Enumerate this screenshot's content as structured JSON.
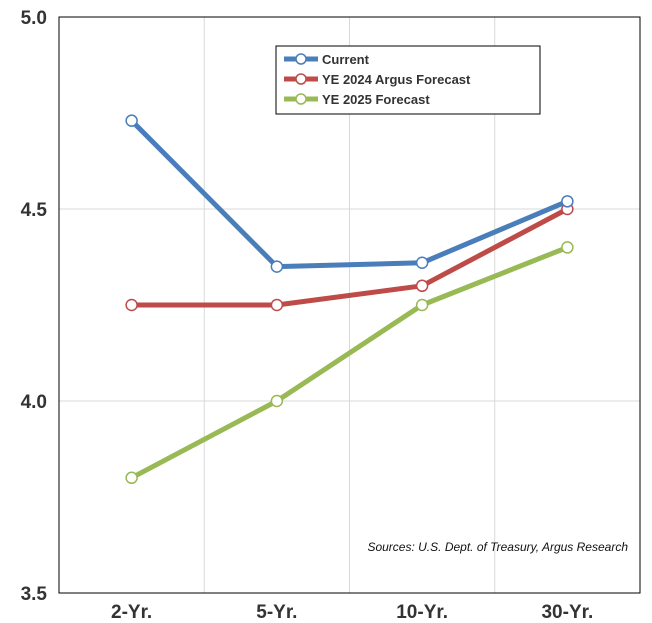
{
  "chart_data": {
    "type": "line",
    "categories": [
      "2-Yr.",
      "5-Yr.",
      "10-Yr.",
      "30-Yr."
    ],
    "series": [
      {
        "name": "Current",
        "values": [
          4.73,
          4.35,
          4.36,
          4.52
        ],
        "color": "#4a7ebb"
      },
      {
        "name": "YE 2024 Argus Forecast",
        "values": [
          4.25,
          4.25,
          4.3,
          4.5
        ],
        "color": "#be4b48"
      },
      {
        "name": "YE 2025 Forecast",
        "values": [
          3.8,
          4.0,
          4.25,
          4.4
        ],
        "color": "#98b954"
      }
    ],
    "ylim": [
      3.5,
      5.0
    ],
    "yticks": [
      "5.0",
      "4.5",
      "4.0",
      "3.5"
    ],
    "grid": true,
    "legend_position": "top-right",
    "annotation": "Sources: U.S. Dept. of Treasury, Argus Research"
  }
}
